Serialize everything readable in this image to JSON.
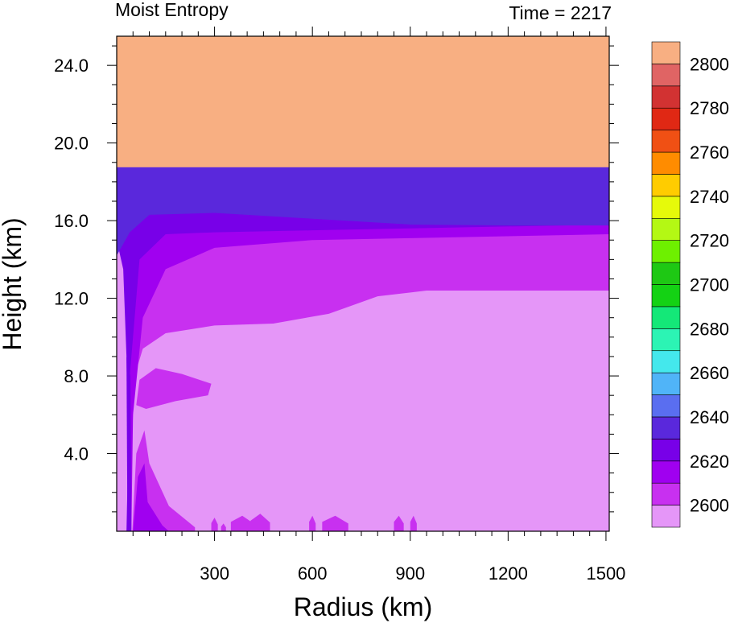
{
  "chart_data": {
    "type": "heatmap",
    "title_left": "Moist Entropy",
    "title_right": "Time = 2217",
    "xlabel": "Radius (km)",
    "ylabel": "Height (km)",
    "xlim": [
      0,
      1510
    ],
    "ylim": [
      0,
      25.5
    ],
    "x_ticks": [
      {
        "value": 300,
        "label": "300"
      },
      {
        "value": 600,
        "label": "600"
      },
      {
        "value": 900,
        "label": "900"
      },
      {
        "value": 1200,
        "label": "1200"
      },
      {
        "value": 1500,
        "label": "1500"
      }
    ],
    "y_ticks": [
      {
        "value": 4,
        "label": "4.0"
      },
      {
        "value": 8,
        "label": "8.0"
      },
      {
        "value": 12,
        "label": "12.0"
      },
      {
        "value": 16,
        "label": "16.0"
      },
      {
        "value": 20,
        "label": "20.0"
      },
      {
        "value": 24,
        "label": "24.0"
      }
    ],
    "colorbar": {
      "levels": [
        2600,
        2610,
        2620,
        2630,
        2640,
        2650,
        2660,
        2670,
        2680,
        2690,
        2700,
        2710,
        2720,
        2730,
        2740,
        2750,
        2760,
        2770,
        2780,
        2790,
        2800
      ],
      "labels": [
        "2600",
        "2620",
        "2640",
        "2660",
        "2680",
        "2700",
        "2720",
        "2740",
        "2760",
        "2780",
        "2800"
      ],
      "colors": [
        "#e596f8",
        "#c830f0",
        "#a000f0",
        "#7800e8",
        "#5a28dc",
        "#5a6ef0",
        "#50b4f8",
        "#44e8ec",
        "#2cf4b4",
        "#14e878",
        "#14d214",
        "#1ec814",
        "#6ef000",
        "#b4f814",
        "#e6fa0a",
        "#ffcc00",
        "#ff8c00",
        "#f05014",
        "#e02814",
        "#d23232",
        "#e06464",
        "#f8af82"
      ]
    },
    "fields": {
      "stratosphere_color": "#f8af82",
      "background_color": "#e596f8",
      "upper_band_color": "#c830f0",
      "inner_core_colors": [
        "#a000f0",
        "#7800e8",
        "#5a28dc"
      ]
    }
  }
}
